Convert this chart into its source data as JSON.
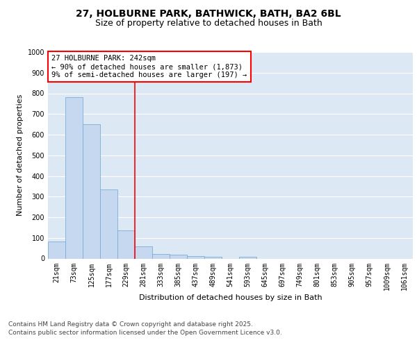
{
  "title_line1": "27, HOLBURNE PARK, BATHWICK, BATH, BA2 6BL",
  "title_line2": "Size of property relative to detached houses in Bath",
  "xlabel": "Distribution of detached houses by size in Bath",
  "ylabel": "Number of detached properties",
  "categories": [
    "21sqm",
    "73sqm",
    "125sqm",
    "177sqm",
    "229sqm",
    "281sqm",
    "333sqm",
    "385sqm",
    "437sqm",
    "489sqm",
    "541sqm",
    "593sqm",
    "645sqm",
    "697sqm",
    "749sqm",
    "801sqm",
    "853sqm",
    "905sqm",
    "957sqm",
    "1009sqm",
    "1061sqm"
  ],
  "values": [
    83,
    783,
    650,
    335,
    135,
    60,
    22,
    18,
    13,
    7,
    0,
    7,
    0,
    0,
    0,
    0,
    0,
    0,
    0,
    0,
    0
  ],
  "bar_color": "#c5d8f0",
  "bar_edge_color": "#7aadd4",
  "vline_x": 4.5,
  "vline_color": "red",
  "annotation_text": "27 HOLBURNE PARK: 242sqm\n← 90% of detached houses are smaller (1,873)\n9% of semi-detached houses are larger (197) →",
  "annotation_box_color": "white",
  "annotation_box_edge_color": "red",
  "ylim": [
    0,
    1000
  ],
  "yticks": [
    0,
    100,
    200,
    300,
    400,
    500,
    600,
    700,
    800,
    900,
    1000
  ],
  "plot_bg_color": "#dde8f5",
  "fig_bg_color": "#ffffff",
  "grid_color": "#ffffff",
  "footer_line1": "Contains HM Land Registry data © Crown copyright and database right 2025.",
  "footer_line2": "Contains public sector information licensed under the Open Government Licence v3.0.",
  "title1_fontsize": 10,
  "title2_fontsize": 9,
  "axis_label_fontsize": 8,
  "tick_fontsize": 7,
  "annotation_fontsize": 7.5,
  "footer_fontsize": 6.5
}
